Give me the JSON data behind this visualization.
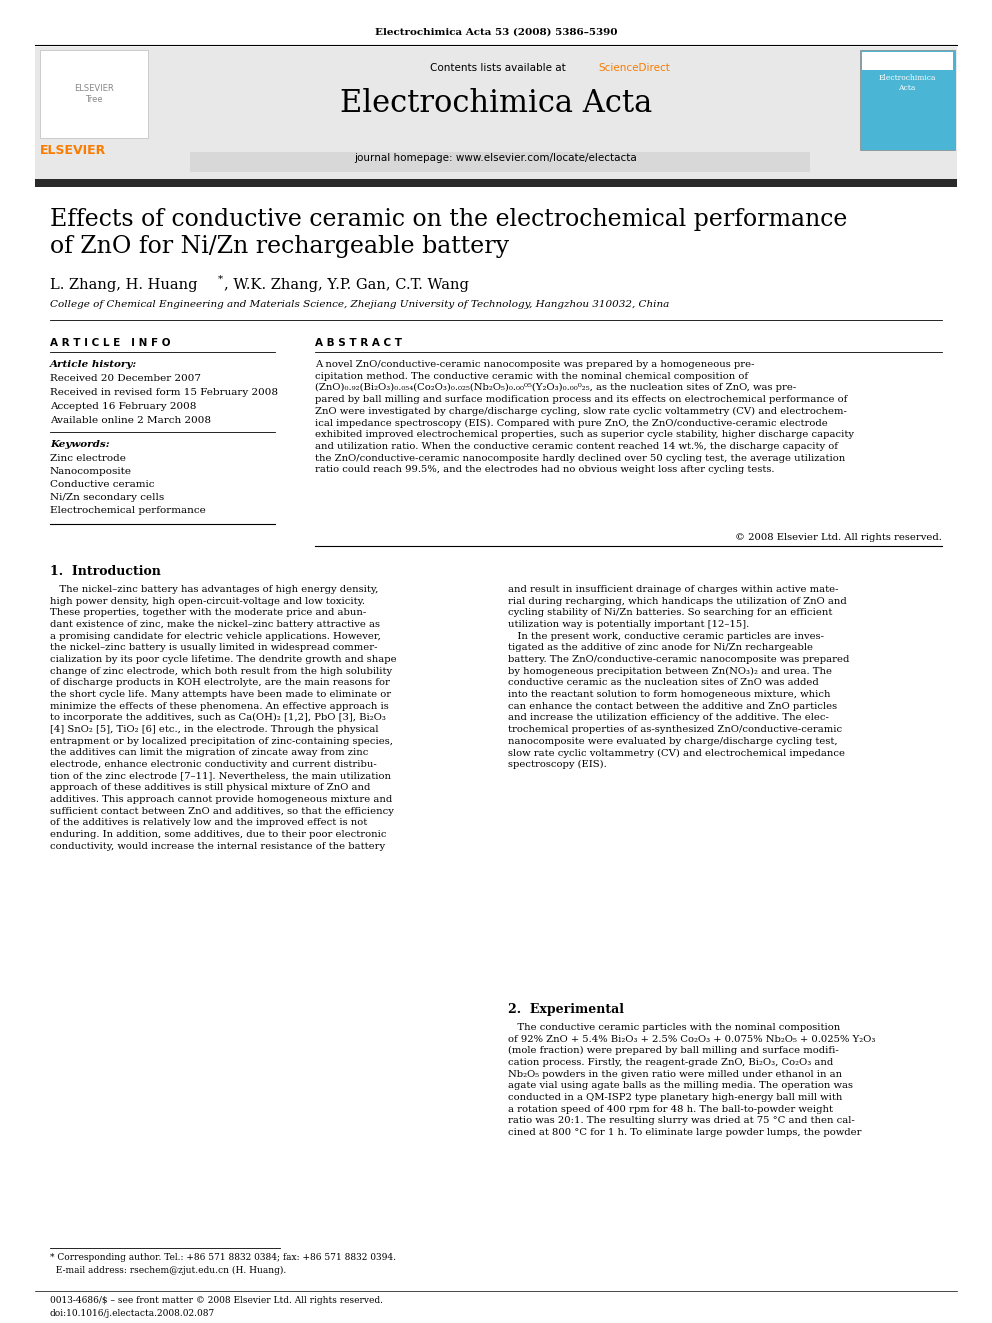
{
  "journal_info": "Electrochimica Acta 53 (2008) 5386–5390",
  "contents_text": "Contents lists available at ",
  "sciencedirect_text": "ScienceDirect",
  "journal_name": "Electrochimica Acta",
  "journal_url": "journal homepage: www.elsevier.com/locate/electacta",
  "title_line1": "Effects of conductive ceramic on the electrochemical performance",
  "title_line2": "of ZnO for Ni/Zn rechargeable battery",
  "authors_part1": "L. Zhang, H. Huang",
  "authors_part2": ", W.K. Zhang, Y.P. Gan, C.T. Wang",
  "affiliation": "College of Chemical Engineering and Materials Science, Zhejiang University of Technology, Hangzhou 310032, China",
  "article_info_header": "A R T I C L E   I N F O",
  "abstract_header": "A B S T R A C T",
  "article_history_label": "Article history:",
  "received1": "Received 20 December 2007",
  "received2": "Received in revised form 15 February 2008",
  "accepted": "Accepted 16 February 2008",
  "available": "Available online 2 March 2008",
  "keywords_label": "Keywords:",
  "keywords": [
    "Zinc electrode",
    "Nanocomposite",
    "Conductive ceramic",
    "Ni/Zn secondary cells",
    "Electrochemical performance"
  ],
  "abstract_text": "A novel ZnO/conductive-ceramic nanocomposite was prepared by a homogeneous pre-\ncipitation method. The conductive ceramic with the nominal chemical composition of\n(ZnO)₀.₉₂(Bi₂O₃)₀.₀₅₄(Co₂O₃)₀.₀₂₅(Nb₂O₅)₀.₀₀⁰⁵(Y₂O₃)₀.₀₀⁰₂₅, as the nucleation sites of ZnO, was pre-\npared by ball milling and surface modification process and its effects on electrochemical performance of\nZnO were investigated by charge/discharge cycling, slow rate cyclic voltammetry (CV) and electrochem-\nical impedance spectroscopy (EIS). Compared with pure ZnO, the ZnO/conductive-ceramic electrode\nexhibited improved electrochemical properties, such as superior cycle stability, higher discharge capacity\nand utilization ratio. When the conductive ceramic content reached 14 wt.%, the discharge capacity of\nthe ZnO/conductive-ceramic nanocomposite hardly declined over 50 cycling test, the average utilization\nratio could reach 99.5%, and the electrodes had no obvious weight loss after cycling tests.",
  "copyright": "© 2008 Elsevier Ltd. All rights reserved.",
  "section1_header": "1.  Introduction",
  "intro_col1_p1": "   The nickel–zinc battery has advantages of high energy density,\nhigh power density, high open-circuit-voltage and low toxicity.\nThese properties, together with the moderate price and abun-\ndant existence of zinc, make the nickel–zinc battery attractive as\na promising candidate for electric vehicle applications. However,\nthe nickel–zinc battery is usually limited in widespread commer-\ncialization by its poor cycle lifetime. The dendrite growth and shape\nchange of zinc electrode, which both result from the high solubility\nof discharge products in KOH electrolyte, are the main reasons for\nthe short cycle life. Many attempts have been made to eliminate or\nminimize the effects of these phenomena. An effective approach is\nto incorporate the additives, such as Ca(OH)₂ [1,2], PbO [3], Bi₂O₃\n[4] SnO₂ [5], TiO₂ [6] etc., in the electrode. Through the physical\nentrapment or by localized precipitation of zinc-containing species,\nthe additives can limit the migration of zincate away from zinc\nelectrode, enhance electronic conductivity and current distribu-\ntion of the zinc electrode [7–11]. Nevertheless, the main utilization\napproach of these additives is still physical mixture of ZnO and\nadditives. This approach cannot provide homogeneous mixture and\nsufficient contact between ZnO and additives, so that the efficiency\nof the additives is relatively low and the improved effect is not\nenduring. In addition, some additives, due to their poor electronic\nconductivity, would increase the internal resistance of the battery",
  "intro_col2_p1": "and result in insufficient drainage of charges within active mate-\nrial during recharging, which handicaps the utilization of ZnO and\ncycling stability of Ni/Zn batteries. So searching for an efficient\nutilization way is potentially important [12–15].\n   In the present work, conductive ceramic particles are inves-\ntigated as the additive of zinc anode for Ni/Zn rechargeable\nbattery. The ZnO/conductive-ceramic nanocomposite was prepared\nby homogeneous precipitation between Zn(NO₃)₂ and urea. The\nconductive ceramic as the nucleation sites of ZnO was added\ninto the reactant solution to form homogeneous mixture, which\ncan enhance the contact between the additive and ZnO particles\nand increase the utilization efficiency of the additive. The elec-\ntrochemical properties of as-synthesized ZnO/conductive-ceramic\nnanocomposite were evaluated by charge/discharge cycling test,\nslow rate cyclic voltammetry (CV) and electrochemical impedance\nspectroscopy (EIS).",
  "section2_header": "2.  Experimental",
  "exp_col2": "   The conductive ceramic particles with the nominal composition\nof 92% ZnO + 5.4% Bi₂O₃ + 2.5% Co₂O₃ + 0.075% Nb₂O₅ + 0.025% Y₂O₃\n(mole fraction) were prepared by ball milling and surface modifi-\ncation process. Firstly, the reagent-grade ZnO, Bi₂O₃, Co₂O₃ and\nNb₂O₅ powders in the given ratio were milled under ethanol in an\nagate vial using agate balls as the milling media. The operation was\nconducted in a QM-ISP2 type planetary high-energy ball mill with\na rotation speed of 400 rpm for 48 h. The ball-to-powder weight\nratio was 20:1. The resulting slurry was dried at 75 °C and then cal-\ncined at 800 °C for 1 h. To eliminate large powder lumps, the powder",
  "footnote": "* Corresponding author. Tel.: +86 571 8832 0384; fax: +86 571 8832 0394.",
  "footnote2": "  E-mail address: rsechem@zjut.edu.cn (H. Huang).",
  "bottom_text1": "0013-4686/$ – see front matter © 2008 Elsevier Ltd. All rights reserved.",
  "bottom_text2": "doi:10.1016/j.electacta.2008.02.087",
  "header_bg": "#e8e8e8",
  "url_bar_bg": "#d8d8d8",
  "dark_bar_color": "#2a2a2a",
  "sciencedirect_color": "#f97c00",
  "elsevier_orange": "#f97c00",
  "cover_bg": "#4ab5d4"
}
